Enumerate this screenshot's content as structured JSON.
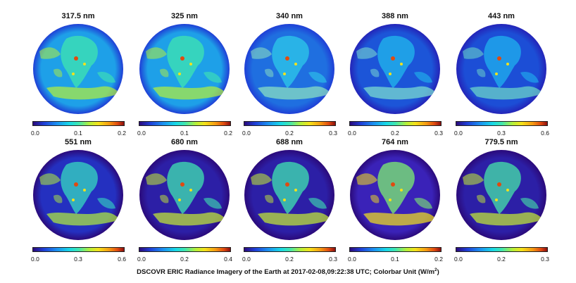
{
  "figure": {
    "caption_main": "DSCOVR ERIC Radiance Imagery of the Earth at 2017-02-08,09:22:38 UTC;  Colorbar Unit (W/m",
    "caption_sup": "2",
    "caption_end": ")"
  },
  "panels": [
    {
      "title": "317.5 nm",
      "ticks": [
        "0.0",
        "0.1",
        "0.2"
      ],
      "colors": {
        "base": "#1ea0e8",
        "land": "#3fe6b0",
        "cloud": "#b4f03a",
        "edge": "#1f3fd6"
      }
    },
    {
      "title": "325 nm",
      "ticks": [
        "0.0",
        "0.1",
        "0.2"
      ],
      "colors": {
        "base": "#1ea0e8",
        "land": "#3fe6b0",
        "cloud": "#b4f03a",
        "edge": "#1f3fd6"
      }
    },
    {
      "title": "340 nm",
      "ticks": [
        "0.0",
        "0.2",
        "0.3"
      ],
      "colors": {
        "base": "#1f6fe0",
        "land": "#2ec9ea",
        "cloud": "#8fe6c0",
        "edge": "#1f3fd6"
      }
    },
    {
      "title": "388 nm",
      "ticks": [
        "0.0",
        "0.2",
        "0.3"
      ],
      "colors": {
        "base": "#1c55d8",
        "land": "#20b8ec",
        "cloud": "#7fe2d0",
        "edge": "#2424b8"
      }
    },
    {
      "title": "443 nm",
      "ticks": [
        "0.0",
        "0.3",
        "0.6"
      ],
      "colors": {
        "base": "#1c4ed6",
        "land": "#1fb2ee",
        "cloud": "#6fdcc8",
        "edge": "#2424b8"
      }
    },
    {
      "title": "551 nm",
      "ticks": [
        "0.0",
        "0.3",
        "0.6"
      ],
      "colors": {
        "base": "#2430c0",
        "land": "#36d8c0",
        "cloud": "#b4f03a",
        "edge": "#2b0a7a"
      }
    },
    {
      "title": "680 nm",
      "ticks": [
        "0.0",
        "0.2",
        "0.4"
      ],
      "colors": {
        "base": "#2c1fa6",
        "land": "#3fe6b0",
        "cloud": "#c8f032",
        "edge": "#2b0a7a"
      }
    },
    {
      "title": "688 nm",
      "ticks": [
        "0.0",
        "0.2",
        "0.3"
      ],
      "colors": {
        "base": "#2c1fa6",
        "land": "#3fe6b0",
        "cloud": "#c8f032",
        "edge": "#2b0a7a"
      }
    },
    {
      "title": "764 nm",
      "ticks": [
        "0.0",
        "0.1",
        "0.2"
      ],
      "colors": {
        "base": "#3a22b8",
        "land": "#7ef070",
        "cloud": "#f5e21a",
        "edge": "#2b0a7a"
      }
    },
    {
      "title": "779.5 nm",
      "ticks": [
        "0.0",
        "0.2",
        "0.3"
      ],
      "colors": {
        "base": "#2c1fa6",
        "land": "#46e6a8",
        "cloud": "#c8f032",
        "edge": "#2b0a7a"
      }
    }
  ]
}
